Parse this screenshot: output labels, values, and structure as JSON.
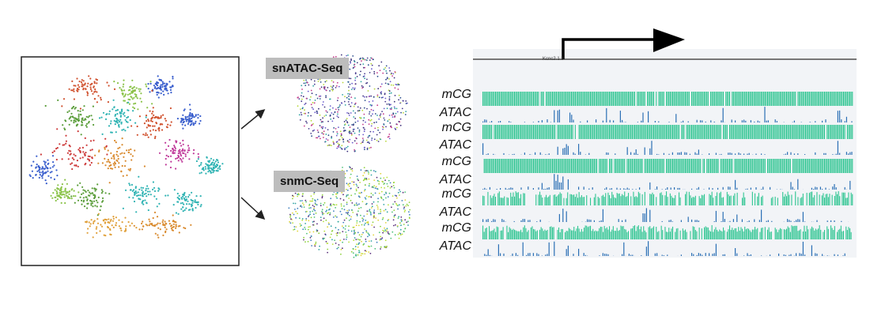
{
  "labels": {
    "snatac": "snATAC-Seq",
    "snmc": "snmC-Seq",
    "gene": "Kcnc2.1.3"
  },
  "tracks": [
    {
      "label": "mCG",
      "type": "mCG",
      "density": 0.97
    },
    {
      "label": "ATAC",
      "type": "ATAC"
    },
    {
      "label": "mCG",
      "type": "mCG",
      "density": 0.95
    },
    {
      "label": "ATAC",
      "type": "ATAC"
    },
    {
      "label": "mCG",
      "type": "mCG",
      "density": 0.95
    },
    {
      "label": "ATAC",
      "type": "ATAC"
    },
    {
      "label": "mCG",
      "type": "mCG",
      "density": 0.7
    },
    {
      "label": "ATAC",
      "type": "ATAC"
    },
    {
      "label": "mCG",
      "type": "mCG",
      "density": 0.8
    },
    {
      "label": "ATAC",
      "type": "ATAC"
    }
  ],
  "colors": {
    "mcg": "#2ec591",
    "atac": "#2a6fb5",
    "atac_dark": "#1f3d8a",
    "browser_bg": "#f2f4f7",
    "clusters": [
      "#d0512e",
      "#5a9d3a",
      "#3a5fcd",
      "#d98a2e",
      "#c03a9a",
      "#2fb3b3",
      "#8bc34a",
      "#9b59b6",
      "#e0a03a",
      "#cd3a3a"
    ]
  }
}
